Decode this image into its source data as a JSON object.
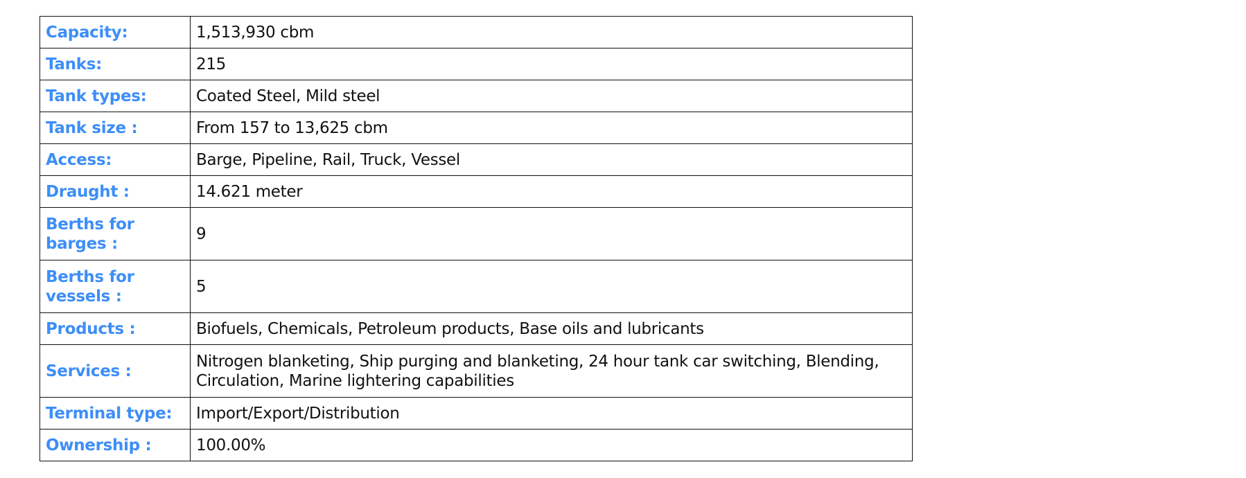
{
  "colors": {
    "label": "#3d8ef7",
    "value": "#111111"
  },
  "rows": [
    {
      "label": "Capacity:",
      "value": "1,513,930 cbm"
    },
    {
      "label": "Tanks:",
      "value": "215"
    },
    {
      "label": "Tank types:",
      "value": "Coated Steel, Mild steel"
    },
    {
      "label": "Tank size :",
      "value": "From 157 to 13,625 cbm"
    },
    {
      "label": "Access:",
      "value": "Barge, Pipeline, Rail, Truck, Vessel"
    },
    {
      "label": "Draught :",
      "value": "14.621 meter"
    },
    {
      "label": "Berths for barges :",
      "value": "9"
    },
    {
      "label": "Berths for vessels :",
      "value": "5"
    },
    {
      "label": "Products :",
      "value": "Biofuels, Chemicals, Petroleum products, Base oils and lubricants"
    },
    {
      "label": "Services :",
      "value": "Nitrogen blanketing, Ship purging and blanketing, 24 hour tank car switching, Blending, Circulation, Marine lightering capabilities"
    },
    {
      "label": "Terminal type:",
      "value": "Import/Export/Distribution"
    },
    {
      "label": "Ownership :",
      "value": "100.00%"
    }
  ]
}
